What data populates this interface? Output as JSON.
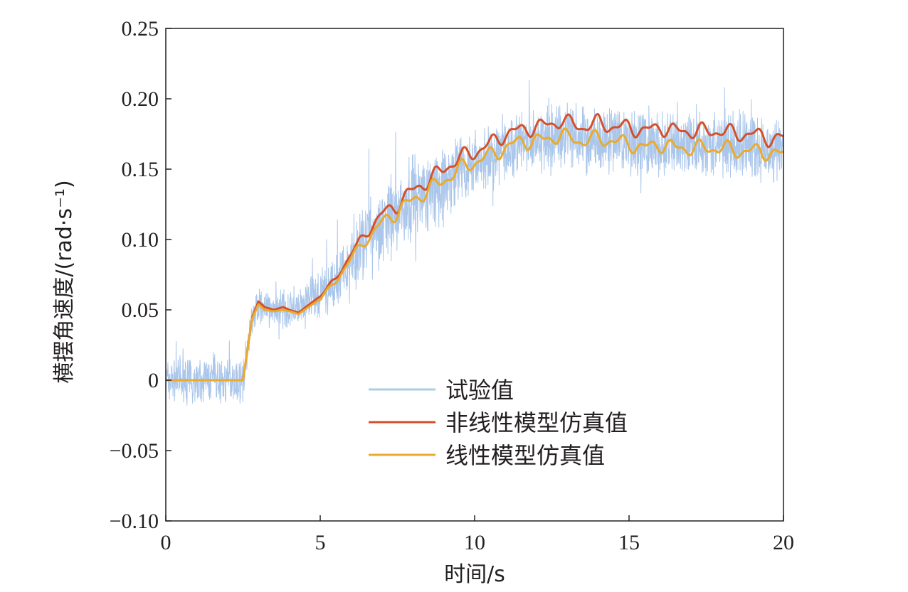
{
  "chart_data": {
    "type": "line",
    "xlabel": "时间/s",
    "ylabel": "横摆角速度/(rad·s⁻¹)",
    "xlim": [
      0,
      20
    ],
    "ylim": [
      -0.1,
      0.25
    ],
    "xticks": [
      0,
      5,
      10,
      15,
      20
    ],
    "xtick_labels": [
      "0",
      "5",
      "10",
      "15",
      "20"
    ],
    "yticks": [
      -0.1,
      -0.05,
      0,
      0.05,
      0.1,
      0.15,
      0.2,
      0.25
    ],
    "ytick_labels": [
      "−0.10",
      "−0.05",
      "0",
      "0.05",
      "0.10",
      "0.15",
      "0.20",
      "0.25"
    ],
    "grid": false,
    "legend_position": "lower-right",
    "series": [
      {
        "name": "试验值",
        "color": "#aac6ea",
        "legend_color": "#a9cfe0",
        "style": "noisy",
        "x": [
          0,
          2.5,
          2.8,
          3.0,
          3.5,
          4.0,
          4.5,
          5.0,
          5.5,
          6.0,
          6.5,
          7.0,
          7.5,
          8.0,
          8.5,
          9.0,
          9.5,
          10.0,
          10.5,
          11.0,
          11.5,
          12.0,
          12.5,
          13.0,
          13.5,
          14.0,
          14.5,
          15.0,
          15.5,
          16.0,
          16.5,
          17.0,
          17.5,
          18.0,
          18.5,
          19.0,
          19.5,
          20.0
        ],
        "y": [
          0,
          0,
          0.045,
          0.052,
          0.05,
          0.05,
          0.052,
          0.06,
          0.07,
          0.085,
          0.1,
          0.11,
          0.12,
          0.13,
          0.135,
          0.14,
          0.148,
          0.155,
          0.16,
          0.165,
          0.17,
          0.17,
          0.172,
          0.175,
          0.172,
          0.17,
          0.17,
          0.168,
          0.168,
          0.168,
          0.168,
          0.168,
          0.168,
          0.168,
          0.168,
          0.168,
          0.165,
          0.165
        ]
      },
      {
        "name": "非线性模型仿真值",
        "color": "#d4502a",
        "x": [
          0,
          2.5,
          2.7,
          2.8,
          3.0,
          3.2,
          3.5,
          3.8,
          4.0,
          4.3,
          5.0,
          5.5,
          6.0,
          6.5,
          7.0,
          7.5,
          8.0,
          8.5,
          9.0,
          9.5,
          10.0,
          10.5,
          11.0,
          11.5,
          12.0,
          12.5,
          12.8,
          13.0,
          13.5,
          14.0,
          14.5,
          15.0,
          15.5,
          16.0,
          16.5,
          17.0,
          17.5,
          18.0,
          18.5,
          19.0,
          19.5,
          20.0
        ],
        "y": [
          0,
          0,
          0.03,
          0.045,
          0.056,
          0.052,
          0.05,
          0.052,
          0.05,
          0.048,
          0.06,
          0.072,
          0.09,
          0.105,
          0.118,
          0.125,
          0.135,
          0.142,
          0.15,
          0.158,
          0.162,
          0.168,
          0.175,
          0.178,
          0.18,
          0.182,
          0.185,
          0.183,
          0.18,
          0.183,
          0.18,
          0.18,
          0.177,
          0.18,
          0.177,
          0.177,
          0.177,
          0.177,
          0.175,
          0.175,
          0.172,
          0.172
        ]
      },
      {
        "name": "线性模型仿真值",
        "color": "#eaaa2d",
        "x": [
          0,
          2.5,
          2.7,
          2.8,
          3.0,
          3.2,
          3.5,
          3.8,
          4.0,
          4.3,
          5.0,
          5.5,
          6.0,
          6.5,
          7.0,
          7.5,
          8.0,
          8.5,
          9.0,
          9.5,
          10.0,
          10.5,
          11.0,
          11.5,
          12.0,
          12.5,
          12.8,
          13.0,
          13.5,
          14.0,
          14.5,
          15.0,
          15.5,
          16.0,
          16.5,
          17.0,
          17.5,
          18.0,
          18.5,
          19.0,
          19.5,
          20.0
        ],
        "y": [
          0,
          0,
          0.03,
          0.044,
          0.054,
          0.05,
          0.049,
          0.05,
          0.049,
          0.047,
          0.058,
          0.07,
          0.087,
          0.1,
          0.112,
          0.12,
          0.128,
          0.135,
          0.142,
          0.15,
          0.155,
          0.16,
          0.165,
          0.17,
          0.17,
          0.172,
          0.175,
          0.172,
          0.17,
          0.172,
          0.17,
          0.168,
          0.165,
          0.168,
          0.165,
          0.165,
          0.165,
          0.165,
          0.163,
          0.163,
          0.162,
          0.16
        ]
      }
    ]
  }
}
